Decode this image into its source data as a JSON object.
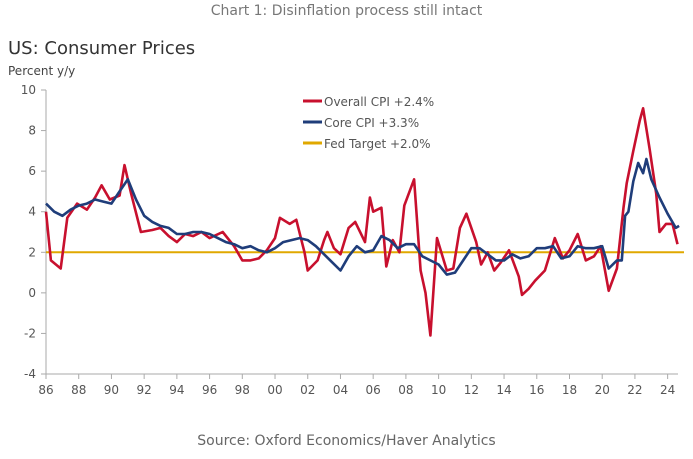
{
  "caption": "Chart 1: Disinflation process still intact",
  "source": "Source: Oxford Economics/Haver Analytics",
  "chart_data": {
    "type": "line",
    "title": "US: Consumer Prices",
    "ylabel": "Percent y/y",
    "xlabel": "",
    "xlim": [
      1986,
      2025
    ],
    "ylim": [
      -4,
      10
    ],
    "yticks": [
      10,
      8,
      6,
      4,
      2,
      0,
      -2,
      -4
    ],
    "xtick_labels": [
      "86",
      "88",
      "90",
      "92",
      "94",
      "96",
      "98",
      "00",
      "02",
      "04",
      "06",
      "08",
      "10",
      "12",
      "14",
      "16",
      "18",
      "20",
      "22",
      "24"
    ],
    "xtick_years": [
      1986,
      1988,
      1990,
      1992,
      1994,
      1996,
      1998,
      2000,
      2002,
      2004,
      2006,
      2008,
      2010,
      2012,
      2014,
      2016,
      2018,
      2020,
      2022,
      2024
    ],
    "grid": false,
    "legend_placement": "top-center",
    "series": [
      {
        "name": "Overall CPI +2.4%",
        "color": "#c8102e",
        "x": [
          1986.0,
          1986.3,
          1986.9,
          1987.3,
          1987.9,
          1988.5,
          1989.0,
          1989.4,
          1989.9,
          1990.5,
          1990.8,
          1991.2,
          1991.8,
          1992.5,
          1993.0,
          1993.5,
          1994.0,
          1994.5,
          1995.0,
          1995.5,
          1996.0,
          1996.8,
          1997.5,
          1998.0,
          1998.5,
          1999.0,
          1999.5,
          2000.0,
          2000.3,
          2000.9,
          2001.3,
          2001.8,
          2002.0,
          2002.6,
          2003.0,
          2003.2,
          2003.6,
          2004.0,
          2004.5,
          2004.9,
          2005.5,
          2005.8,
          2006.0,
          2006.5,
          2006.8,
          2007.2,
          2007.6,
          2007.9,
          2008.5,
          2008.9,
          2009.2,
          2009.5,
          2009.9,
          2010.5,
          2010.9,
          2011.3,
          2011.7,
          2012.3,
          2012.6,
          2013.0,
          2013.4,
          2013.8,
          2014.3,
          2014.9,
          2015.1,
          2015.5,
          2015.9,
          2016.5,
          2017.1,
          2017.6,
          2018.0,
          2018.5,
          2019.0,
          2019.5,
          2019.9,
          2020.4,
          2020.9,
          2021.3,
          2021.5,
          2021.9,
          2022.3,
          2022.5,
          2022.9,
          2023.3,
          2023.5,
          2023.9,
          2024.3,
          2024.6
        ],
        "y": [
          4.0,
          1.6,
          1.2,
          3.7,
          4.4,
          4.1,
          4.7,
          5.3,
          4.6,
          4.8,
          6.3,
          4.9,
          3.0,
          3.1,
          3.2,
          2.8,
          2.5,
          2.9,
          2.8,
          3.0,
          2.7,
          3.0,
          2.3,
          1.6,
          1.6,
          1.7,
          2.1,
          2.7,
          3.7,
          3.4,
          3.6,
          2.0,
          1.1,
          1.6,
          2.6,
          3.0,
          2.2,
          1.9,
          3.2,
          3.5,
          2.5,
          4.7,
          4.0,
          4.2,
          1.3,
          2.6,
          2.0,
          4.3,
          5.6,
          1.1,
          0.0,
          -2.1,
          2.7,
          1.1,
          1.2,
          3.2,
          3.9,
          2.5,
          1.4,
          2.0,
          1.1,
          1.5,
          2.1,
          0.8,
          -0.1,
          0.2,
          0.6,
          1.1,
          2.7,
          1.7,
          2.1,
          2.9,
          1.6,
          1.8,
          2.3,
          0.1,
          1.2,
          4.2,
          5.4,
          7.0,
          8.5,
          9.1,
          7.1,
          4.9,
          3.0,
          3.4,
          3.4,
          2.4
        ]
      },
      {
        "name": "Core CPI +3.3%",
        "color": "#1f3d7a",
        "x": [
          1986.0,
          1986.5,
          1987.0,
          1987.5,
          1988.0,
          1988.5,
          1989.0,
          1989.5,
          1990.0,
          1990.5,
          1991.0,
          1991.5,
          1992.0,
          1992.5,
          1993.0,
          1993.5,
          1994.0,
          1994.5,
          1995.0,
          1995.5,
          1996.0,
          1996.5,
          1997.0,
          1997.5,
          1998.0,
          1998.5,
          1999.0,
          1999.5,
          2000.0,
          2000.5,
          2001.0,
          2001.5,
          2002.0,
          2002.5,
          2003.0,
          2003.5,
          2004.0,
          2004.5,
          2005.0,
          2005.5,
          2006.0,
          2006.5,
          2007.0,
          2007.5,
          2008.0,
          2008.5,
          2009.0,
          2009.5,
          2010.0,
          2010.5,
          2011.0,
          2011.5,
          2012.0,
          2012.5,
          2013.0,
          2013.5,
          2014.0,
          2014.5,
          2015.0,
          2015.5,
          2016.0,
          2016.5,
          2017.0,
          2017.5,
          2018.0,
          2018.5,
          2019.0,
          2019.5,
          2020.0,
          2020.4,
          2020.9,
          2021.2,
          2021.4,
          2021.6,
          2021.9,
          2022.2,
          2022.5,
          2022.7,
          2023.0,
          2023.5,
          2024.0,
          2024.5,
          2024.7
        ],
        "y": [
          4.4,
          4.0,
          3.8,
          4.1,
          4.3,
          4.4,
          4.6,
          4.5,
          4.4,
          5.0,
          5.6,
          4.6,
          3.8,
          3.5,
          3.3,
          3.2,
          2.9,
          2.9,
          3.0,
          3.0,
          2.9,
          2.7,
          2.5,
          2.4,
          2.2,
          2.3,
          2.1,
          2.0,
          2.2,
          2.5,
          2.6,
          2.7,
          2.6,
          2.3,
          1.9,
          1.5,
          1.1,
          1.8,
          2.3,
          2.0,
          2.1,
          2.8,
          2.6,
          2.2,
          2.4,
          2.4,
          1.8,
          1.6,
          1.4,
          0.9,
          1.0,
          1.6,
          2.2,
          2.2,
          1.9,
          1.6,
          1.6,
          1.9,
          1.7,
          1.8,
          2.2,
          2.2,
          2.3,
          1.7,
          1.8,
          2.3,
          2.2,
          2.2,
          2.3,
          1.2,
          1.6,
          1.6,
          3.8,
          4.0,
          5.5,
          6.4,
          5.9,
          6.6,
          5.6,
          4.7,
          3.9,
          3.2,
          3.3
        ]
      },
      {
        "name": "Fed Target +2.0%",
        "color": "#e0a800",
        "x": [
          1986,
          2025
        ],
        "y": [
          2.0,
          2.0
        ]
      }
    ]
  }
}
